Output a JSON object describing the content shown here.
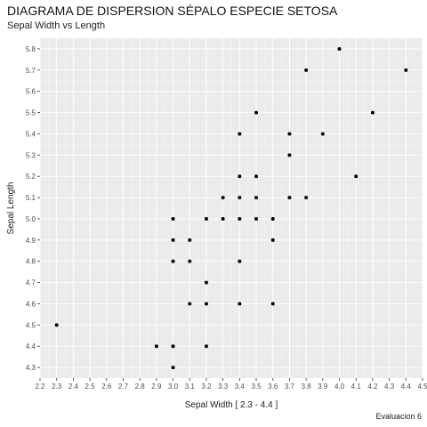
{
  "title": "DIAGRAMA DE DISPERSION SÉPALO ESPECIE SETOSA",
  "subtitle": "Sepal Width vs Length",
  "caption": "Evaluacion 6",
  "colors": {
    "panel": "#ebebeb",
    "grid_major": "#ffffff",
    "point": "#000000"
  },
  "chart_data": {
    "type": "scatter",
    "title": "DIAGRAMA DE DISPERSION SÉPALO ESPECIE SETOSA",
    "subtitle": "Sepal Width vs Length",
    "xlabel": "Sepal Width [ 2.3 - 4.4 ]",
    "ylabel": "Sepal Length",
    "xlim": [
      2.2,
      4.5
    ],
    "ylim": [
      4.25,
      5.85
    ],
    "xticks": [
      "2.2",
      "2.3",
      "2.4",
      "2.5",
      "2.6",
      "2.7",
      "2.8",
      "2.9",
      "3.0",
      "3.1",
      "3.2",
      "3.3",
      "3.4",
      "3.5",
      "3.6",
      "3.7",
      "3.8",
      "3.9",
      "4.0",
      "4.1",
      "4.2",
      "4.3",
      "4.4",
      "4.5"
    ],
    "yticks": [
      "4.3",
      "4.4",
      "4.5",
      "4.6",
      "4.7",
      "4.8",
      "4.9",
      "5.0",
      "5.1",
      "5.2",
      "5.3",
      "5.4",
      "5.5",
      "5.6",
      "5.7",
      "5.8"
    ],
    "grid": true,
    "legend": "none",
    "points": [
      {
        "x": 2.3,
        "y": 4.5
      },
      {
        "x": 2.9,
        "y": 4.4
      },
      {
        "x": 3.0,
        "y": 4.4
      },
      {
        "x": 3.0,
        "y": 4.3
      },
      {
        "x": 3.0,
        "y": 4.8
      },
      {
        "x": 3.0,
        "y": 4.9
      },
      {
        "x": 3.0,
        "y": 5.0
      },
      {
        "x": 3.1,
        "y": 4.9
      },
      {
        "x": 3.1,
        "y": 4.8
      },
      {
        "x": 3.1,
        "y": 4.6
      },
      {
        "x": 3.2,
        "y": 5.0
      },
      {
        "x": 3.2,
        "y": 4.7
      },
      {
        "x": 3.2,
        "y": 4.6
      },
      {
        "x": 3.2,
        "y": 4.4
      },
      {
        "x": 3.3,
        "y": 5.1
      },
      {
        "x": 3.3,
        "y": 5.0
      },
      {
        "x": 3.4,
        "y": 5.4
      },
      {
        "x": 3.4,
        "y": 5.2
      },
      {
        "x": 3.4,
        "y": 5.1
      },
      {
        "x": 3.4,
        "y": 5.0
      },
      {
        "x": 3.4,
        "y": 4.8
      },
      {
        "x": 3.4,
        "y": 4.6
      },
      {
        "x": 3.5,
        "y": 5.5
      },
      {
        "x": 3.5,
        "y": 5.2
      },
      {
        "x": 3.5,
        "y": 5.1
      },
      {
        "x": 3.5,
        "y": 5.0
      },
      {
        "x": 3.6,
        "y": 5.0
      },
      {
        "x": 3.6,
        "y": 4.9
      },
      {
        "x": 3.6,
        "y": 4.6
      },
      {
        "x": 3.7,
        "y": 5.4
      },
      {
        "x": 3.7,
        "y": 5.3
      },
      {
        "x": 3.7,
        "y": 5.1
      },
      {
        "x": 3.8,
        "y": 5.7
      },
      {
        "x": 3.8,
        "y": 5.1
      },
      {
        "x": 3.9,
        "y": 5.4
      },
      {
        "x": 4.0,
        "y": 5.8
      },
      {
        "x": 4.1,
        "y": 5.2
      },
      {
        "x": 4.2,
        "y": 5.5
      },
      {
        "x": 4.4,
        "y": 5.7
      }
    ]
  }
}
